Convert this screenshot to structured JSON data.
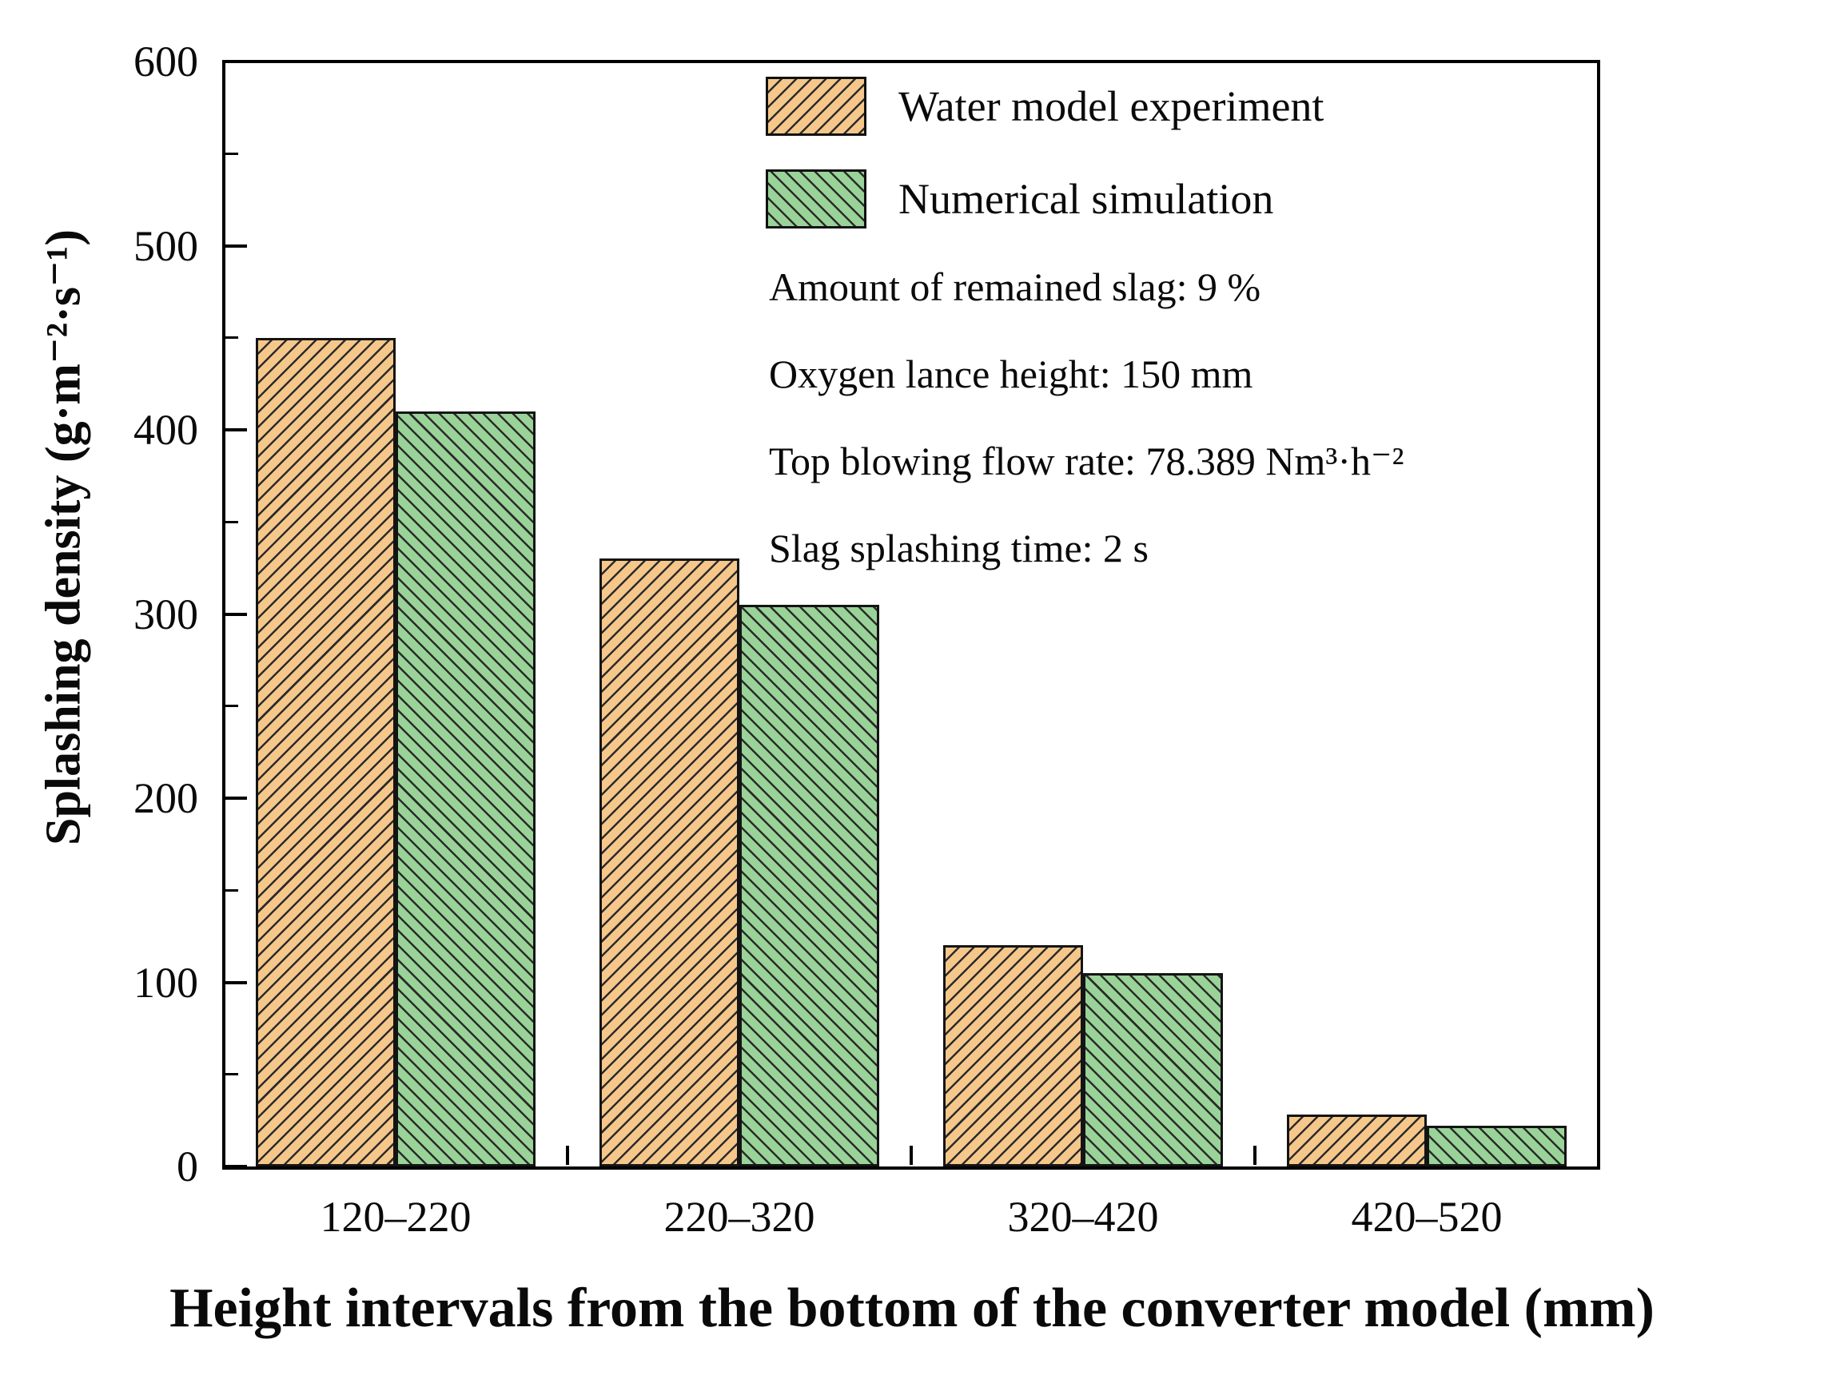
{
  "figure": {
    "y_axis_title": "Splashing density (g·m⁻²·s⁻¹)",
    "x_axis_title": "Height intervals from the bottom of the converter model (mm)"
  },
  "legend": {
    "items": [
      {
        "label": "Water model experiment",
        "color": "#F6C78A",
        "hatch": "forward-diagonal"
      },
      {
        "label": "Numerical simulation",
        "color": "#99D398",
        "hatch": "backward-diagonal"
      }
    ]
  },
  "annotations": [
    "Amount of remained slag: 9 %",
    "Oxygen lance height: 150 mm",
    "Top blowing flow rate: 78.389 Nm³·h⁻²",
    "Slag splashing time: 2 s"
  ],
  "chart_data": {
    "type": "bar",
    "categories": [
      "120–220",
      "220–320",
      "320–420",
      "420–520"
    ],
    "series": [
      {
        "name": "Water model experiment",
        "values": [
          450,
          330,
          120,
          28
        ],
        "color": "#F6C78A",
        "hatch": "/"
      },
      {
        "name": "Numerical simulation",
        "values": [
          410,
          305,
          105,
          22
        ],
        "color": "#99D398",
        "hatch": "\\"
      }
    ],
    "title": "",
    "xlabel": "Height intervals from the bottom of the converter model (mm)",
    "ylabel": "Splashing density (g·m⁻²·s⁻¹)",
    "ylim": [
      0,
      600
    ],
    "yticks_major": [
      0,
      100,
      200,
      300,
      400,
      500,
      600
    ],
    "ytick_minor_step": 50,
    "grid": false,
    "hatch_line_color": "#2b2b2b",
    "axis_color": "#000000",
    "legend_position": "upper-center-inside"
  }
}
